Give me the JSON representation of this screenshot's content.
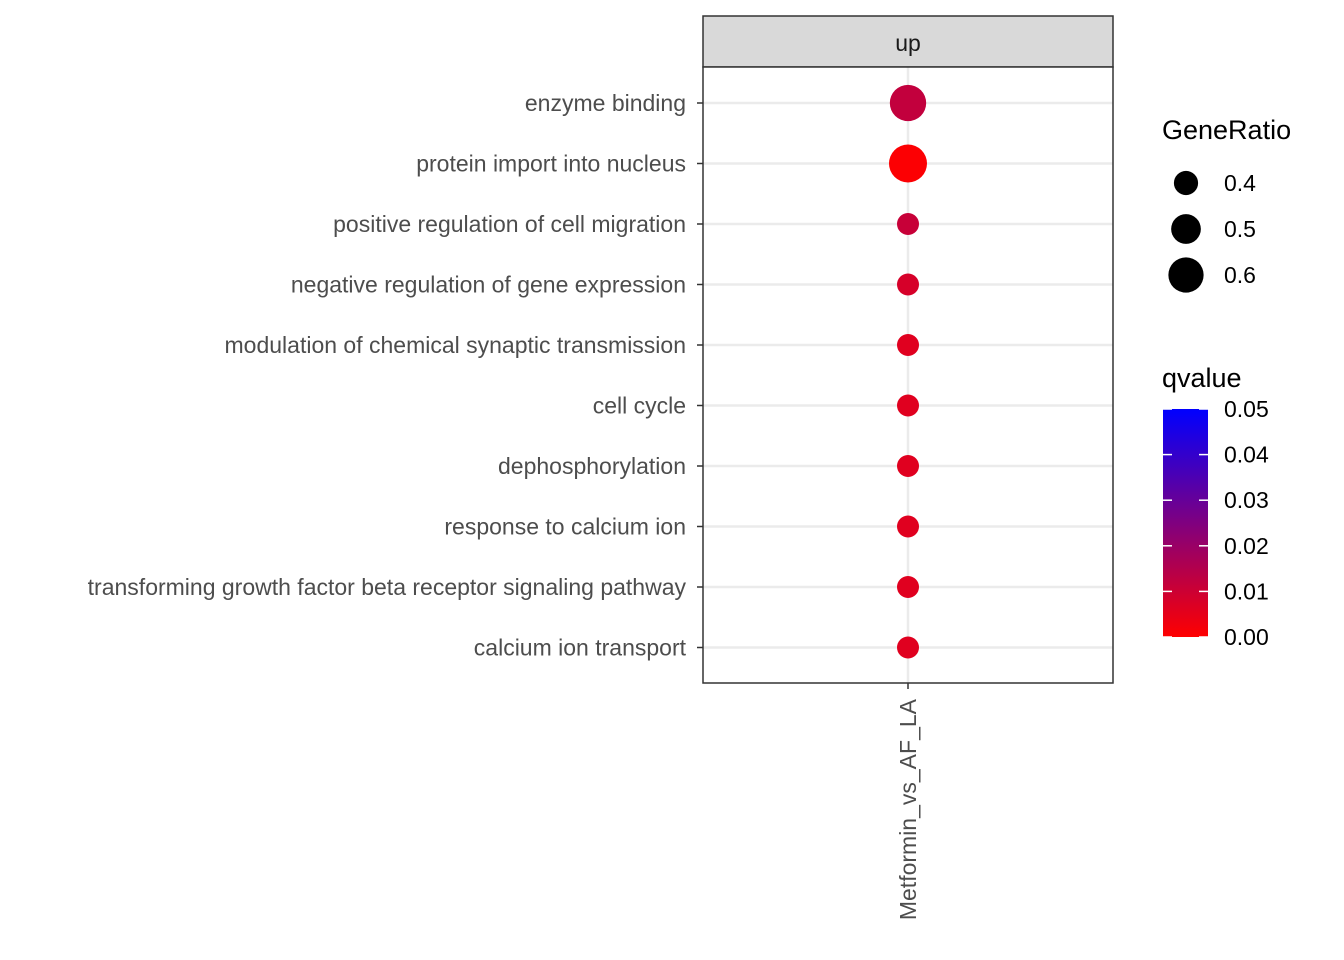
{
  "chart_data": {
    "type": "scatter",
    "facet": "up",
    "x_categories": [
      "Metformin_vs_AF_LA"
    ],
    "y_categories": [
      "enzyme binding",
      "protein import into nucleus",
      "positive regulation of cell migration",
      "negative regulation of gene expression",
      "modulation of chemical synaptic transmission",
      "cell cycle",
      "dephosphorylation",
      "response to calcium ion",
      "transforming growth factor beta receptor signaling pathway",
      "calcium ion transport"
    ],
    "points": [
      {
        "term": "enzyme binding",
        "group": "Metformin_vs_AF_LA",
        "gene_ratio": 0.62,
        "qvalue": 0.012
      },
      {
        "term": "protein import into nucleus",
        "group": "Metformin_vs_AF_LA",
        "gene_ratio": 0.65,
        "qvalue": 0.0005
      },
      {
        "term": "positive regulation of cell migration",
        "group": "Metformin_vs_AF_LA",
        "gene_ratio": 0.36,
        "qvalue": 0.011
      },
      {
        "term": "negative regulation of gene expression",
        "group": "Metformin_vs_AF_LA",
        "gene_ratio": 0.36,
        "qvalue": 0.008
      },
      {
        "term": "modulation of chemical synaptic transmission",
        "group": "Metformin_vs_AF_LA",
        "gene_ratio": 0.36,
        "qvalue": 0.006
      },
      {
        "term": "cell cycle",
        "group": "Metformin_vs_AF_LA",
        "gene_ratio": 0.36,
        "qvalue": 0.006
      },
      {
        "term": "dephosphorylation",
        "group": "Metformin_vs_AF_LA",
        "gene_ratio": 0.36,
        "qvalue": 0.006
      },
      {
        "term": "response to calcium ion",
        "group": "Metformin_vs_AF_LA",
        "gene_ratio": 0.36,
        "qvalue": 0.006
      },
      {
        "term": "transforming growth factor beta receptor signaling pathway",
        "group": "Metformin_vs_AF_LA",
        "gene_ratio": 0.36,
        "qvalue": 0.006
      },
      {
        "term": "calcium ion transport",
        "group": "Metformin_vs_AF_LA",
        "gene_ratio": 0.36,
        "qvalue": 0.006
      }
    ],
    "size_legend": {
      "title": "GeneRatio",
      "breaks": [
        0.4,
        0.5,
        0.6
      ],
      "labels": [
        "0.4",
        "0.5",
        "0.6"
      ]
    },
    "color_legend": {
      "title": "qvalue",
      "range": [
        0,
        0.05
      ],
      "low_color": "#ff0000",
      "high_color": "#0000ff",
      "breaks": [
        0.05,
        0.04,
        0.03,
        0.02,
        0.01,
        0.0
      ],
      "labels": [
        "0.05",
        "0.04",
        "0.03",
        "0.02",
        "0.01",
        "0.00"
      ]
    },
    "grid": true,
    "legend_position": "right"
  }
}
